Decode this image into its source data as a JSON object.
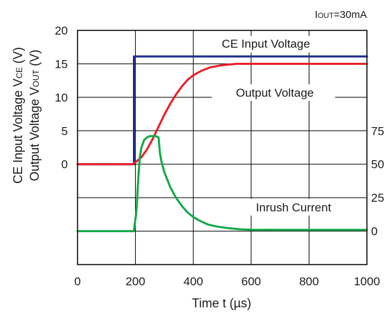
{
  "chart_data": {
    "type": "line",
    "condition": {
      "prefix": "I",
      "sub": "OUT",
      "suffix": "=30mA"
    },
    "xlabel": "Time t (µs)",
    "ylabel_left": [
      {
        "text": "CE Input Voltage V",
        "sub": "CE",
        "unit": " (V)"
      },
      {
        "text": "Output Voltage V",
        "sub": "OUT",
        "unit": " (V)"
      }
    ],
    "xlim": [
      0,
      1000
    ],
    "xticks": [
      "0",
      "200",
      "400",
      "600",
      "800",
      "1000"
    ],
    "yticks_left": [
      "20",
      "15",
      "10",
      "5",
      "0"
    ],
    "yticks_right": [
      "75",
      "50",
      "25",
      "0"
    ],
    "grid": true,
    "colors": {
      "ce": "#1f2f8f",
      "out": "#e8202a",
      "inrush": "#12a84a",
      "frame": "#000000"
    },
    "series": [
      {
        "name": "CE Input Voltage",
        "axis": "left",
        "x": [
          0,
          195,
          195,
          1000
        ],
        "y": [
          0,
          0,
          16.1,
          16.1
        ]
      },
      {
        "name": "Output Voltage",
        "axis": "left",
        "x": [
          0,
          190,
          200,
          220,
          240,
          260,
          280,
          300,
          320,
          340,
          360,
          380,
          400,
          430,
          460,
          500,
          550,
          600,
          700,
          800,
          1000
        ],
        "y": [
          0,
          0,
          0.3,
          1.0,
          2.2,
          3.8,
          5.6,
          7.4,
          9.0,
          10.4,
          11.6,
          12.6,
          13.3,
          14.0,
          14.5,
          14.8,
          15.0,
          15.0,
          15.0,
          15.0,
          15.0
        ]
      },
      {
        "name": "Inrush Current",
        "axis": "right",
        "x": [
          0,
          195,
          198,
          202,
          205,
          210,
          215,
          220,
          230,
          240,
          250,
          260,
          270,
          280,
          285,
          290,
          300,
          320,
          340,
          360,
          380,
          400,
          420,
          450,
          480,
          520,
          560,
          600,
          700,
          800,
          1000
        ],
        "y": [
          0,
          0,
          6,
          12,
          20,
          40,
          55,
          62,
          68,
          70,
          71,
          71,
          71,
          70,
          58,
          52,
          44,
          33,
          25,
          19,
          14,
          10.5,
          8,
          5,
          3.5,
          2.2,
          1.4,
          1.0,
          0.9,
          0.9,
          0.9
        ]
      }
    ],
    "annotations": [
      "CE Input Voltage",
      "Output Voltage",
      "Inrush Current"
    ]
  }
}
